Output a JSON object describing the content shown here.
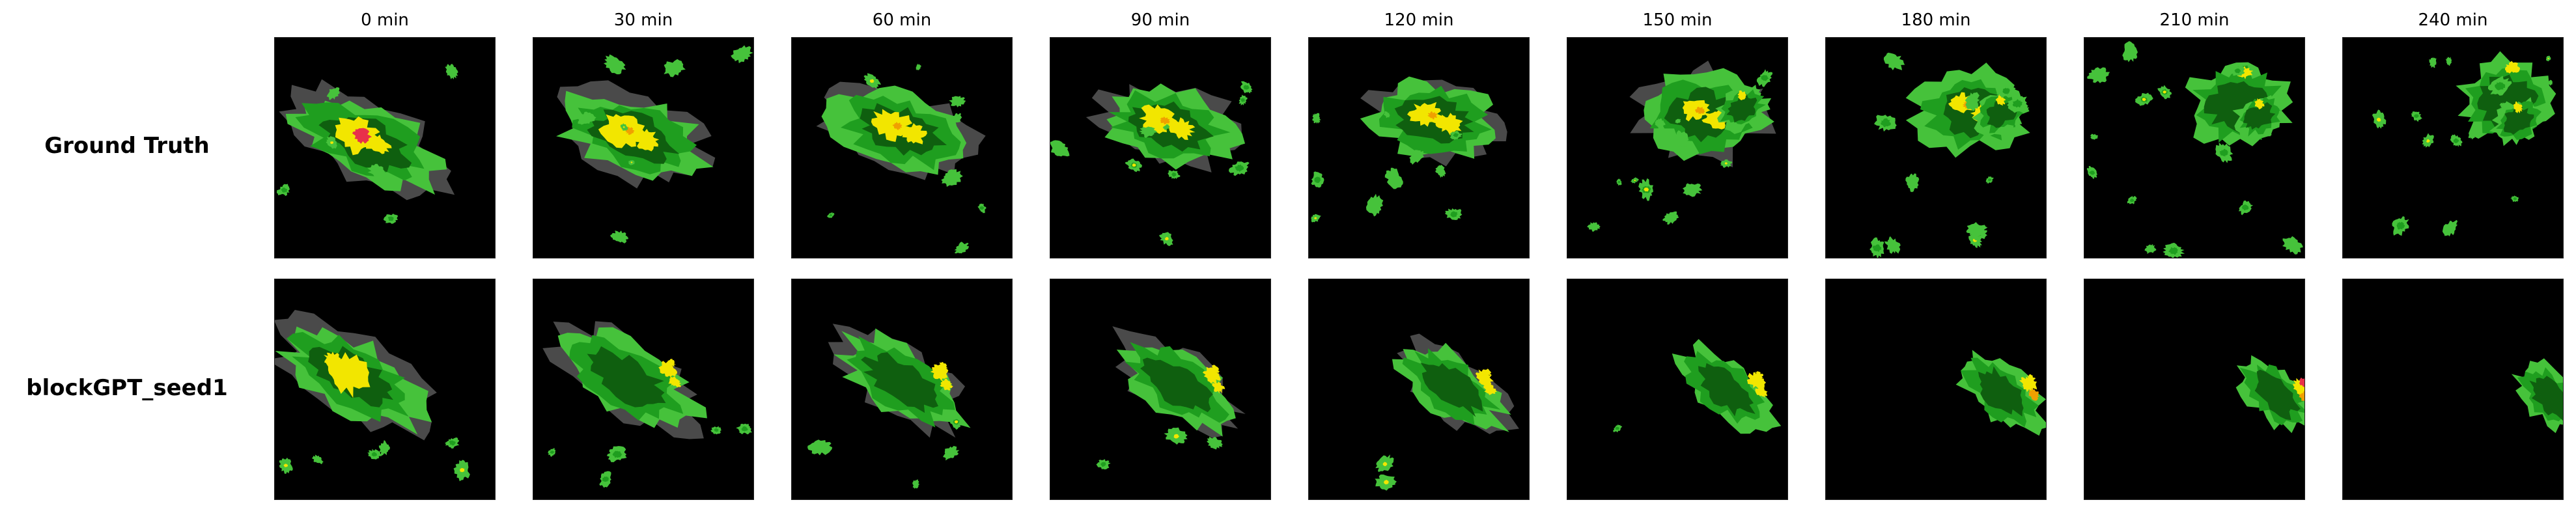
{
  "columns": [
    "0 min",
    "30 min",
    "60 min",
    "90 min",
    "120 min",
    "150 min",
    "180 min",
    "210 min",
    "240 min"
  ],
  "rows": [
    "Ground Truth",
    "blockGPT_seed1"
  ],
  "colors": {
    "background": "#000000",
    "grey": "#4a4a4a",
    "dark_green": "#0f5f0f",
    "green": "#1f9e1f",
    "light_green": "#46c23b",
    "yellow": "#f2e600",
    "orange": "#f0a000",
    "red": "#e8304a"
  }
}
